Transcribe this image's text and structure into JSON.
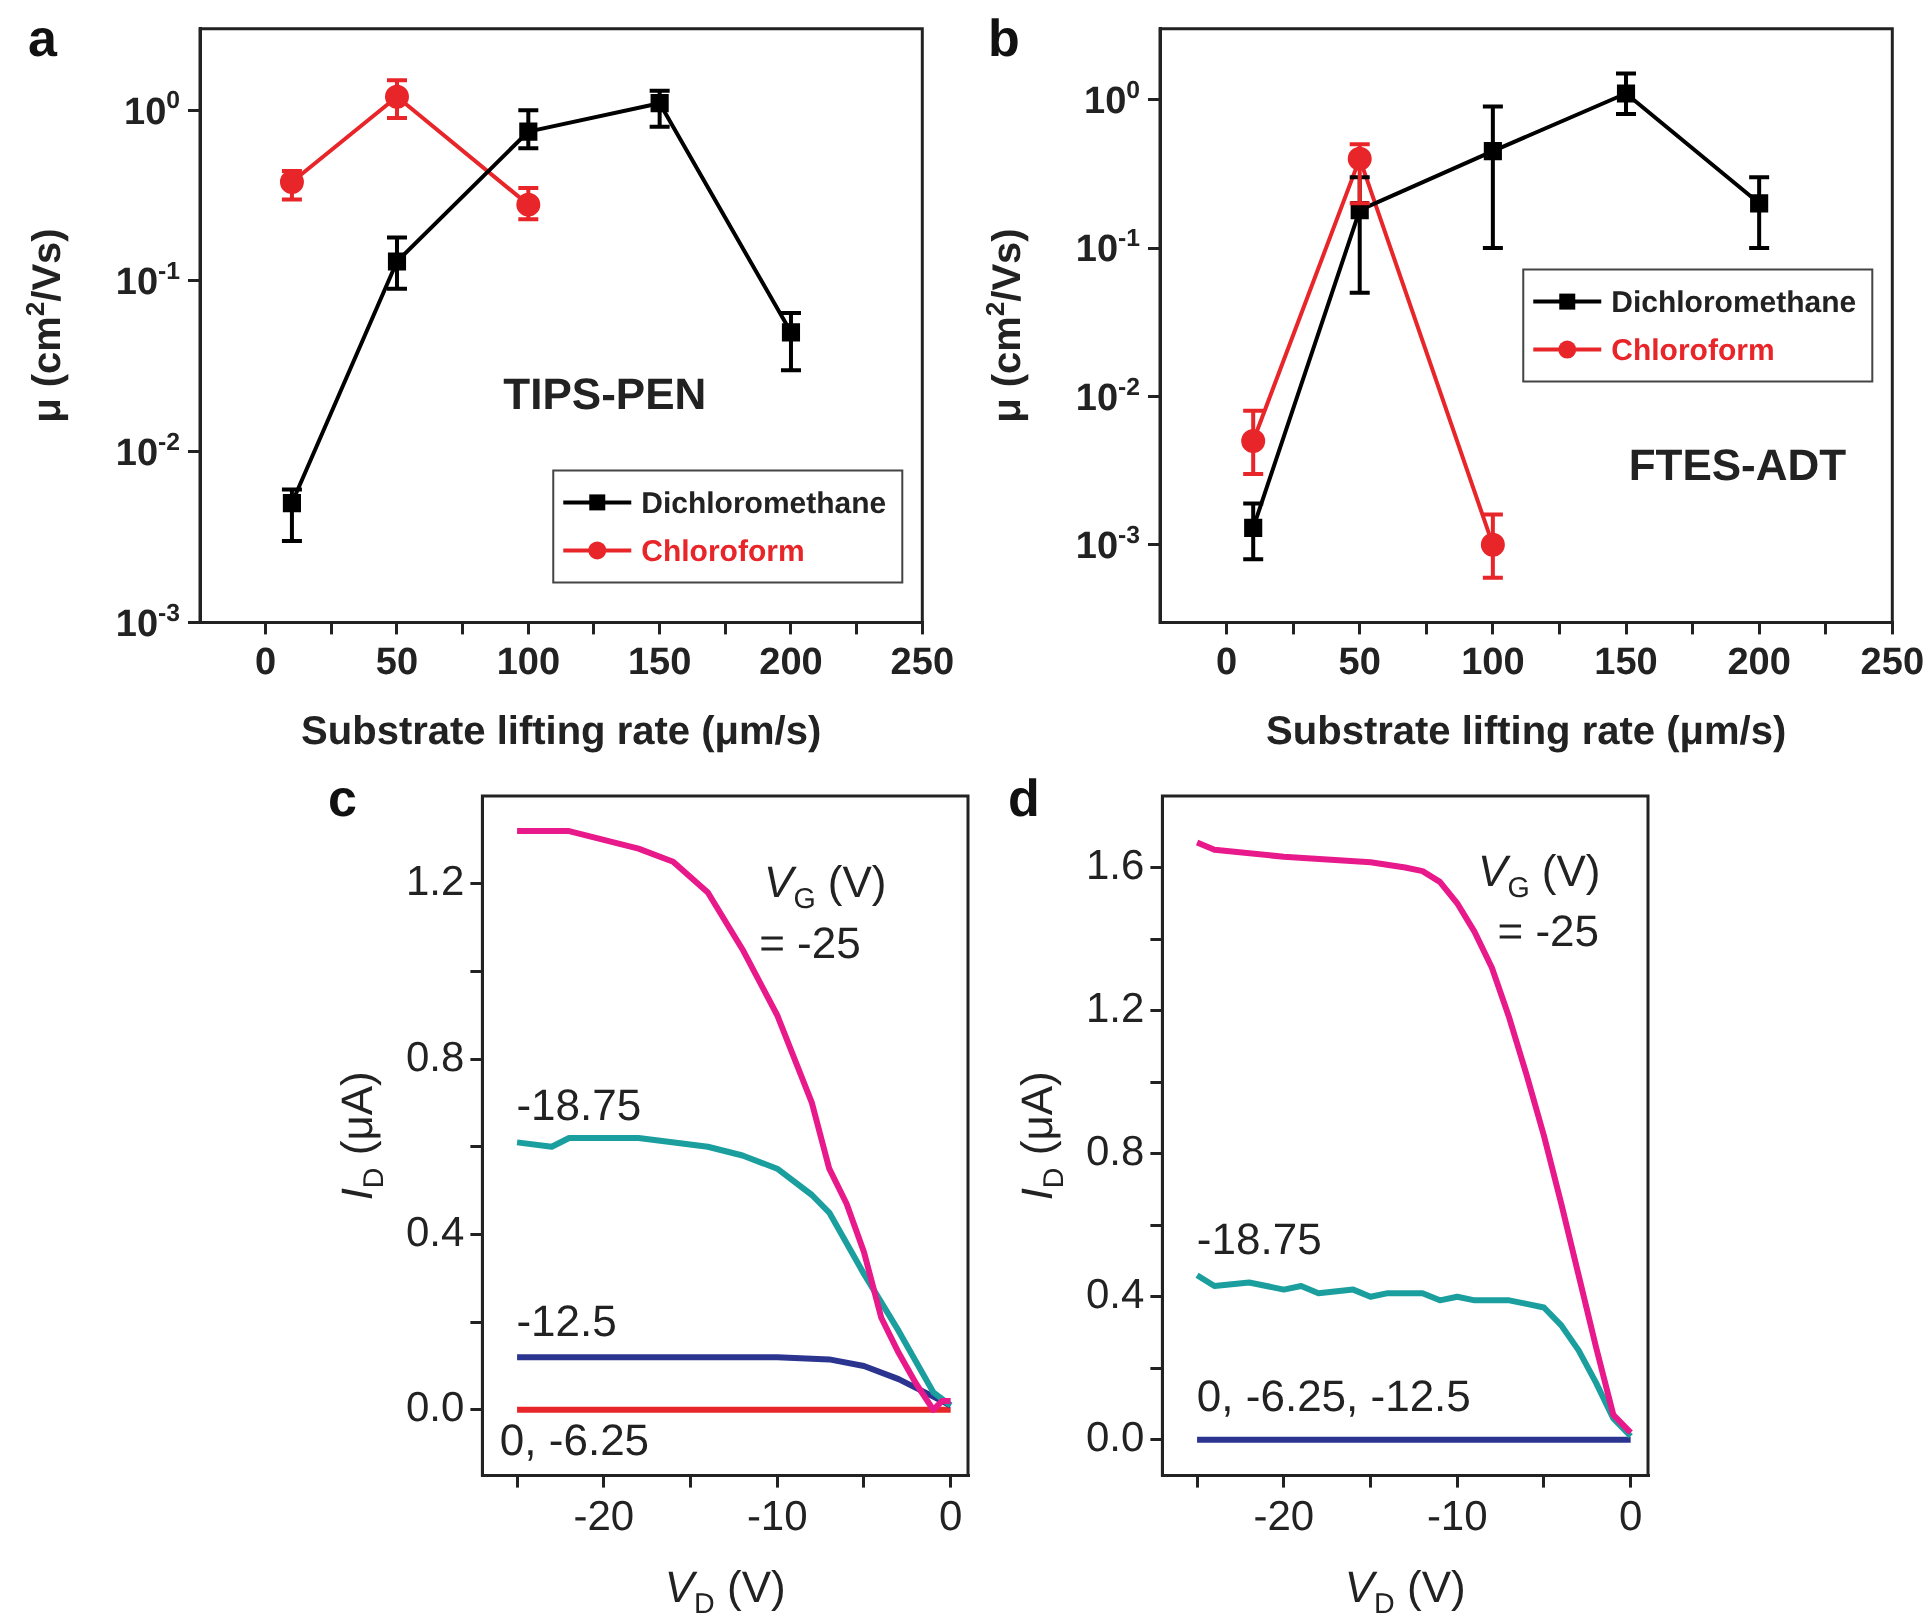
{
  "chart_data": [
    {
      "type": "line",
      "title": "a",
      "xlabel": "Substrate lifting rate (μm/s)",
      "ylabel": "μ (cm$^{2}$/Vs)",
      "log": "y",
      "xlim": [
        -25,
        250
      ],
      "ylim": [
        0.001,
        3
      ],
      "xticks": [
        0,
        {
          "value": 25,
          "label": null
        },
        50,
        {
          "value": 75,
          "label": null
        },
        100,
        {
          "value": 125,
          "label": null
        },
        150,
        {
          "value": 175,
          "label": null
        },
        200,
        {
          "value": 225,
          "label": null
        },
        250
      ],
      "yticks": [
        {
          "value": 0.001,
          "label": "10$^{-3}$"
        },
        {
          "value": 0.01,
          "label": "10$^{-2}$"
        },
        {
          "value": 0.1,
          "label": "10$^{-1}$"
        },
        {
          "value": 1,
          "label": "10$^{0}$"
        }
      ],
      "legend": "bottom right",
      "annotations": [
        "TIPS-PEN"
      ],
      "series": [
        {
          "name": "Dichloromethane",
          "color": "#000000",
          "marker": "square",
          "x": [
            10,
            50,
            100,
            150,
            200
          ],
          "values": [
            0.005,
            0.13,
            0.75,
            1.1,
            0.05
          ],
          "errors": [
            [
              0.003,
              0.006
            ],
            [
              0.09,
              0.18
            ],
            [
              0.6,
              1.0
            ],
            [
              0.8,
              1.3
            ],
            [
              0.03,
              0.065
            ]
          ]
        },
        {
          "name": "Chloroform",
          "color": "#e8262a",
          "marker": "circle",
          "x": [
            10,
            50,
            100
          ],
          "values": [
            0.38,
            1.2,
            0.28
          ],
          "errors": [
            [
              0.3,
              0.44
            ],
            [
              0.9,
              1.5
            ],
            [
              0.23,
              0.35
            ]
          ]
        }
      ]
    },
    {
      "type": "line",
      "title": "b",
      "xlabel": "Substrate lifting rate (μm/s)",
      "ylabel": "μ (cm$^{2}$/Vs)",
      "log": "y",
      "xlim": [
        -25,
        250
      ],
      "ylim": [
        0.0003,
        3
      ],
      "xticks": [
        0,
        {
          "value": 25,
          "label": null
        },
        50,
        {
          "value": 75,
          "label": null
        },
        100,
        {
          "value": 125,
          "label": null
        },
        150,
        {
          "value": 175,
          "label": null
        },
        200,
        {
          "value": 225,
          "label": null
        },
        250
      ],
      "yticks": [
        {
          "value": 0.001,
          "label": "10$^{-3}$"
        },
        {
          "value": 0.01,
          "label": "10$^{-2}$"
        },
        {
          "value": 0.1,
          "label": "10$^{-1}$"
        },
        {
          "value": 1,
          "label": "10$^{0}$"
        }
      ],
      "legend": "right",
      "annotations": [
        "FTES-ADT"
      ],
      "series": [
        {
          "name": "Dichloromethane",
          "color": "#000000",
          "marker": "square",
          "x": [
            10,
            50,
            100,
            150,
            200
          ],
          "values": [
            0.0013,
            0.18,
            0.45,
            1.1,
            0.2
          ],
          "errors": [
            [
              0.0008,
              0.0019
            ],
            [
              0.05,
              0.3
            ],
            [
              0.1,
              0.9
            ],
            [
              0.8,
              1.5
            ],
            [
              0.1,
              0.3
            ]
          ]
        },
        {
          "name": "Chloroform",
          "color": "#e8262a",
          "marker": "circle",
          "x": [
            10,
            50,
            100
          ],
          "values": [
            0.005,
            0.4,
            0.001
          ],
          "errors": [
            [
              0.003,
              0.008
            ],
            [
              0.2,
              0.5
            ],
            [
              0.0006,
              0.0016
            ]
          ]
        }
      ]
    },
    {
      "type": "line",
      "title": "c",
      "xlabel": "V$_{D}$ (V)",
      "ylabel": "I$_{D}$ (μA)",
      "marker": "none",
      "xlim": [
        -27,
        1
      ],
      "ylim": [
        -0.15,
        1.4
      ],
      "xticks": [
        {
          "value": -25,
          "label": null
        },
        -20,
        {
          "value": -15,
          "label": null
        },
        -10,
        {
          "value": -5,
          "label": null
        },
        0
      ],
      "yticks": [
        {
          "value": 0,
          "label": "0.0"
        },
        {
          "value": 0.2,
          "label": null
        },
        0.4,
        {
          "value": 0.6,
          "label": null
        },
        0.8,
        {
          "value": 1,
          "label": null
        },
        1.2
      ],
      "annotations": [
        "V$_{G}$ (V)",
        "= -25",
        "-18.75",
        "-12.5",
        "0, -6.25"
      ],
      "series": [
        {
          "color": "#e8198b",
          "x": [
            -25,
            -22,
            -20,
            -18,
            -16,
            -14,
            -12,
            -10,
            -8,
            -7,
            -6,
            -5,
            -4,
            -3,
            -2,
            -1,
            -0.5,
            0
          ],
          "values": [
            1.32,
            1.32,
            1.3,
            1.28,
            1.25,
            1.18,
            1.05,
            0.9,
            0.7,
            0.55,
            0.47,
            0.36,
            0.21,
            0.13,
            0.06,
            0,
            0.02,
            0.02
          ]
        },
        {
          "color": "#1a9e9e",
          "x": [
            -25,
            -23,
            -22,
            -18,
            -14,
            -12,
            -10,
            -8,
            -7,
            -5,
            -3,
            -1,
            0
          ],
          "values": [
            0.61,
            0.6,
            0.62,
            0.62,
            0.6,
            0.58,
            0.55,
            0.49,
            0.45,
            0.31,
            0.18,
            0.04,
            0.01
          ]
        },
        {
          "color": "#2b3590",
          "x": [
            -25,
            -10,
            -7,
            -5,
            -3,
            -1,
            0
          ],
          "values": [
            0.12,
            0.12,
            0.115,
            0.1,
            0.07,
            0.03,
            0.01
          ]
        },
        {
          "color": "#e8262a",
          "x": [
            -25,
            0
          ],
          "values": [
            0,
            0
          ]
        }
      ]
    },
    {
      "type": "line",
      "title": "d",
      "xlabel": "V$_{D}$ (V)",
      "ylabel": "I$_{D}$ (μA)",
      "marker": "none",
      "xlim": [
        -27,
        1
      ],
      "ylim": [
        -0.1,
        1.8
      ],
      "xticks": [
        {
          "value": -25,
          "label": null
        },
        -20,
        {
          "value": -15,
          "label": null
        },
        -10,
        {
          "value": -5,
          "label": null
        },
        0
      ],
      "yticks": [
        {
          "value": 0,
          "label": "0.0"
        },
        {
          "value": 0.2,
          "label": null
        },
        0.4,
        {
          "value": 0.6,
          "label": null
        },
        0.8,
        {
          "value": 1,
          "label": null
        },
        1.2,
        {
          "value": 1.4,
          "label": null
        },
        1.6
      ],
      "annotations": [
        "V$_{G}$ (V)",
        "= -25",
        "-18.75",
        "0, -6.25, -12.5"
      ],
      "series": [
        {
          "color": "#e8198b",
          "x": [
            -25,
            -24,
            -20,
            -15,
            -13,
            -12,
            -11,
            -10,
            -9,
            -8,
            -7,
            -6,
            -5,
            -4,
            -3,
            -2,
            -1,
            0
          ],
          "values": [
            1.67,
            1.65,
            1.63,
            1.615,
            1.6,
            1.59,
            1.56,
            1.5,
            1.42,
            1.32,
            1.18,
            1.02,
            0.85,
            0.66,
            0.46,
            0.26,
            0.07,
            0.02
          ]
        },
        {
          "color": "#1a9e9e",
          "x": [
            -25,
            -24,
            -22,
            -20,
            -19,
            -18,
            -16,
            -15,
            -14,
            -12,
            -11,
            -10,
            -9,
            -8,
            -7,
            -6,
            -5,
            -4,
            -3,
            -2,
            -1,
            0
          ],
          "values": [
            0.46,
            0.43,
            0.44,
            0.42,
            0.43,
            0.41,
            0.42,
            0.4,
            0.41,
            0.41,
            0.39,
            0.4,
            0.39,
            0.39,
            0.39,
            0.38,
            0.37,
            0.32,
            0.25,
            0.16,
            0.06,
            0.01
          ]
        },
        {
          "color": "#2b3590",
          "x": [
            -25,
            0
          ],
          "values": [
            0,
            0
          ]
        }
      ]
    }
  ]
}
